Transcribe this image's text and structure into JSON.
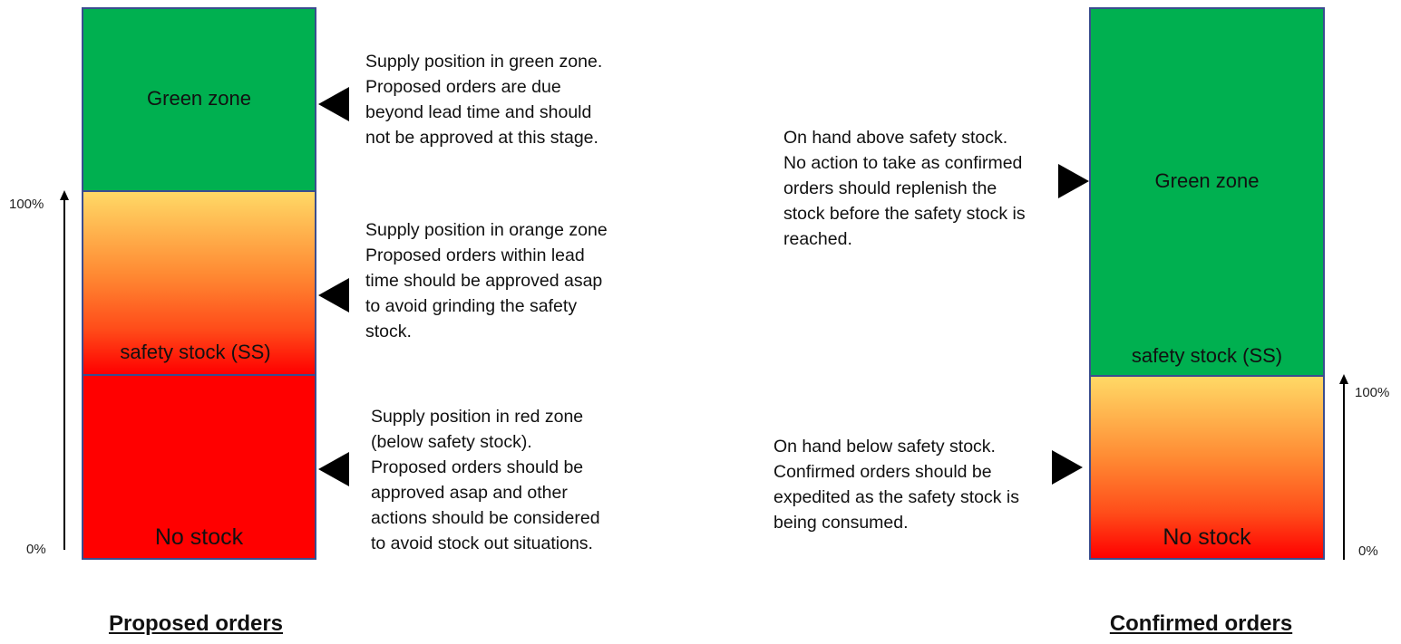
{
  "left_panel": {
    "green_label": "Green zone",
    "orange_label": "safety stock (SS)",
    "red_label": "No stock",
    "scale_top": "100%",
    "scale_bottom": "0%",
    "title": "Proposed orders",
    "notes": {
      "green": "Supply position in green zone.\nProposed orders are due\nbeyond lead time and should\nnot be approved at this stage.",
      "orange": "Supply position in orange zone\nProposed orders within lead\ntime should be approved asap\nto avoid grinding the safety\nstock.",
      "red": "Supply position in red zone\n(below safety stock).\nProposed orders should be\napproved asap and other\nactions should be considered\nto avoid stock out situations."
    }
  },
  "right_panel": {
    "green_label": "Green zone",
    "ss_label": "safety stock (SS)",
    "red_label": "No stock",
    "scale_top": "100%",
    "scale_bottom": "0%",
    "title": "Confirmed orders",
    "notes": {
      "above": "On hand above safety stock.\nNo action to take as confirmed\norders should replenish the\nstock before the safety stock is\nreached.",
      "below": "On hand below safety stock.\nConfirmed orders should be\nexpedited as the safety stock is\nbeing consumed."
    }
  },
  "colors": {
    "green": "#00b050",
    "red": "#ff0000",
    "orange_top": "#ffd966",
    "border": "#3a4d8f"
  }
}
